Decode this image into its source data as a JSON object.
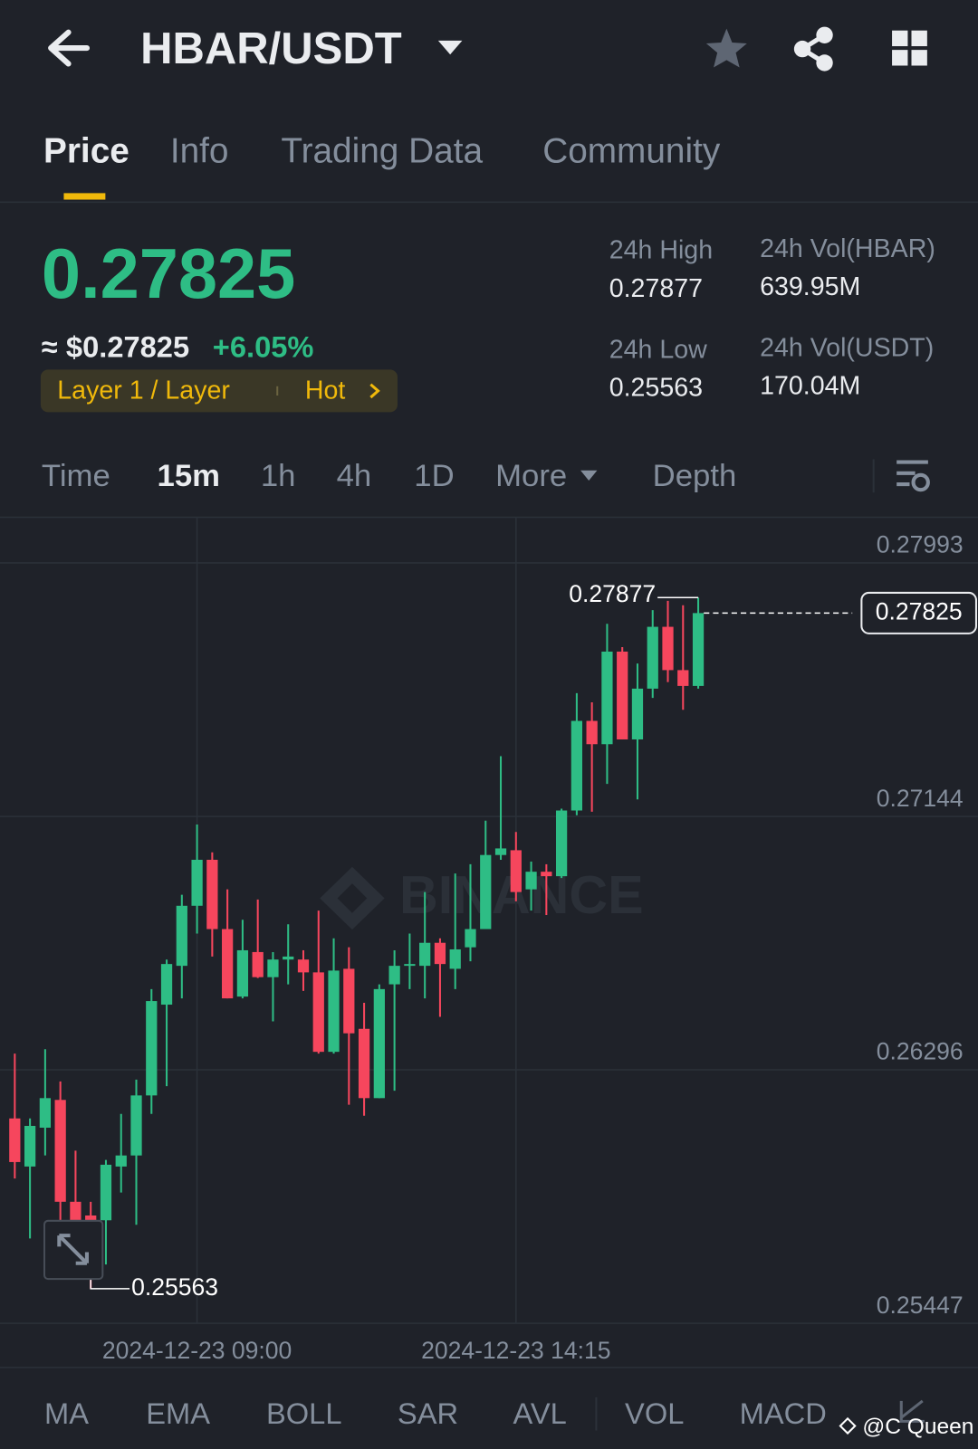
{
  "header": {
    "pair": "HBAR/USDT"
  },
  "tabs": [
    "Price",
    "Info",
    "Trading Data",
    "Community"
  ],
  "price": {
    "last": "0.27825",
    "fiat": "≈ $0.27825",
    "change": "+6.05%",
    "tag": "Layer 1 / Layer",
    "hot": "Hot"
  },
  "stats": {
    "high_label": "24h High",
    "high": "0.27877",
    "low_label": "24h Low",
    "low": "0.25563",
    "vol_base_label": "24h Vol(HBAR)",
    "vol_base": "639.95M",
    "vol_quote_label": "24h Vol(USDT)",
    "vol_quote": "170.04M"
  },
  "timeframes": [
    "Time",
    "15m",
    "1h",
    "4h",
    "1D",
    "More",
    "Depth"
  ],
  "indicators": [
    "MA",
    "EMA",
    "BOLL",
    "SAR",
    "AVL",
    "VOL",
    "MACD"
  ],
  "watermark": "BINANCE",
  "credit": "@C Queen",
  "chart_data": {
    "type": "candlestick",
    "categories": [
      null,
      null,
      null,
      null,
      null,
      null,
      null,
      null,
      null,
      null,
      null,
      null,
      "2024-12-23 09:00",
      null,
      null,
      null,
      null,
      null,
      null,
      null,
      null,
      null,
      null,
      null,
      null,
      null,
      null,
      null,
      null,
      null,
      null,
      null,
      null,
      "2024-12-23 14:15",
      null,
      null,
      null,
      null,
      null,
      null,
      null,
      null,
      null,
      null,
      null,
      null
    ],
    "open": [
      0.26133,
      0.25972,
      0.26102,
      0.26195,
      0.25854,
      0.25808,
      0.25792,
      0.25972,
      0.26009,
      0.2621,
      0.26514,
      0.26644,
      0.26845,
      0.26999,
      0.26767,
      0.26541,
      0.2669,
      0.26606,
      0.26665,
      0.26665,
      0.26622,
      0.26356,
      0.26634,
      0.26433,
      0.26201,
      0.26582,
      0.26644,
      0.26644,
      0.26721,
      0.26634,
      0.26706,
      0.26767,
      0.27015,
      0.27031,
      0.269,
      0.26959,
      0.26944,
      0.27164,
      0.27464,
      0.27386,
      0.27696,
      0.27402,
      0.27572,
      0.27779,
      0.27634,
      0.27581
    ],
    "high": [
      0.2635,
      0.26133,
      0.26365,
      0.26257,
      0.26025,
      0.25854,
      0.25994,
      0.26148,
      0.26263,
      0.26566,
      0.26665,
      0.26882,
      0.27117,
      0.27024,
      0.269,
      0.26798,
      0.26866,
      0.2669,
      0.26783,
      0.26696,
      0.26829,
      0.26736,
      0.26706,
      0.2652,
      0.26582,
      0.26696,
      0.26752,
      0.26891,
      0.26736,
      0.26953,
      0.26984,
      0.2713,
      0.27346,
      0.27092,
      0.26993,
      0.26984,
      0.2717,
      0.27557,
      0.27526,
      0.27789,
      0.27711,
      0.27656,
      0.27835,
      0.27866,
      0.27851,
      0.27877
    ],
    "low": [
      0.25932,
      0.25731,
      0.26009,
      0.25792,
      0.25762,
      0.25563,
      0.25644,
      0.25885,
      0.25777,
      0.26148,
      0.26241,
      0.26535,
      0.26752,
      0.26675,
      0.26535,
      0.26535,
      0.26603,
      0.26458,
      0.26582,
      0.2656,
      0.2635,
      0.2635,
      0.26179,
      0.26142,
      0.26201,
      0.26226,
      0.26566,
      0.26535,
      0.26473,
      0.26566,
      0.26659,
      0.26767,
      0.26999,
      0.2686,
      0.26829,
      0.26814,
      0.26938,
      0.27148,
      0.2716,
      0.27253,
      0.27402,
      0.27201,
      0.27541,
      0.27594,
      0.27501,
      0.27572
    ],
    "close": [
      0.25987,
      0.26108,
      0.26201,
      0.25854,
      0.25792,
      0.25777,
      0.25978,
      0.26009,
      0.2621,
      0.26526,
      0.2665,
      0.26845,
      0.26999,
      0.26767,
      0.26535,
      0.26696,
      0.26606,
      0.26665,
      0.26675,
      0.26622,
      0.26356,
      0.26628,
      0.26418,
      0.26201,
      0.26566,
      0.26644,
      0.2665,
      0.26721,
      0.2665,
      0.26699,
      0.26767,
      0.27015,
      0.27037,
      0.26891,
      0.26959,
      0.26944,
      0.27164,
      0.27464,
      0.27386,
      0.27696,
      0.27402,
      0.27572,
      0.27779,
      0.27634,
      0.27581,
      0.27825
    ],
    "up_color": "#2ebd85",
    "down_color": "#f6465d",
    "ylim": [
      0.25447,
      0.28145
    ],
    "yticks": [
      0.27993,
      0.27144,
      0.26296,
      0.25447
    ],
    "grid": true
  }
}
